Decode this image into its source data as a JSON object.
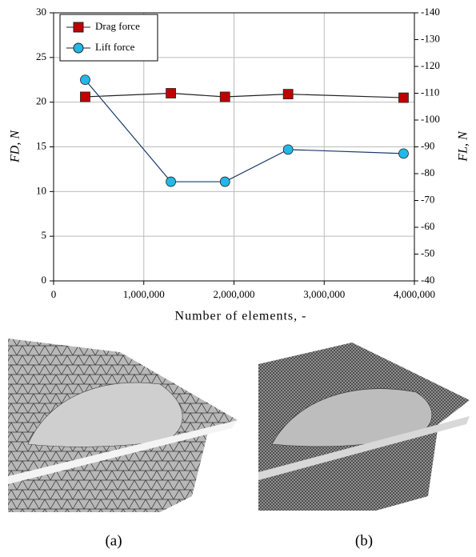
{
  "chart_data": {
    "type": "line",
    "xlabel": "Number of elements, -",
    "ylabel": "FD, N",
    "y2label": "FL, N",
    "x": [
      350000,
      1300000,
      1900000,
      2600000,
      3880000
    ],
    "series": [
      {
        "name": "Drag force",
        "color": "#c00000",
        "values": [
          20.6,
          21.0,
          20.6,
          20.9,
          20.5
        ]
      },
      {
        "name": "Lift force",
        "color": "#22b8e8",
        "axis": "y2",
        "values": [
          -115,
          -77,
          -77,
          -89,
          -87.5
        ]
      }
    ],
    "xlim": [
      0,
      4000000
    ],
    "xticks": [
      0,
      {
        "value": 1000000,
        "label": "1,000,000"
      },
      {
        "value": 2000000,
        "label": "2,000,000"
      },
      {
        "value": 3000000,
        "label": "3,000,000"
      },
      {
        "value": 4000000,
        "label": "4,000,000"
      }
    ],
    "ylim": [
      0,
      30
    ],
    "yticks": [
      0,
      5,
      10,
      15,
      20,
      25,
      30
    ],
    "y2lim": [
      -40,
      -140
    ],
    "y2ticks": [
      -40,
      -50,
      -60,
      -70,
      -80,
      -90,
      -100,
      -110,
      -120,
      -130,
      -140
    ],
    "grid": true,
    "legend": "upper-left"
  },
  "captions": [
    "(a)",
    "(b)"
  ]
}
